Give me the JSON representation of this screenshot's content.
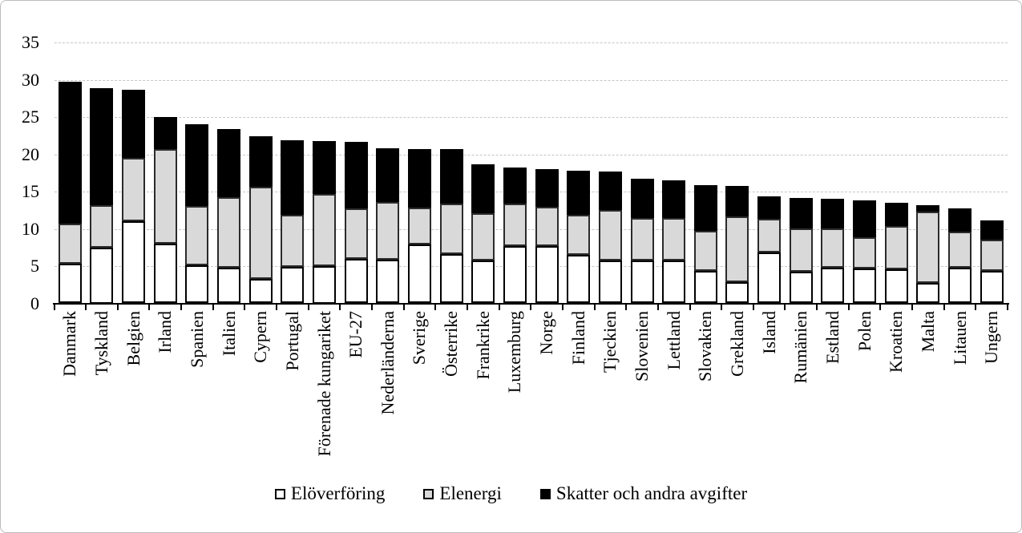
{
  "chart_data": {
    "type": "bar",
    "stacked": true,
    "orientation": "vertical",
    "title": "",
    "xlabel": "",
    "ylabel": "",
    "ylim": [
      0,
      35
    ],
    "yticks": [
      0,
      5,
      10,
      15,
      20,
      25,
      30,
      35
    ],
    "grid": true,
    "legend_position": "bottom",
    "categories": [
      "Danmark",
      "Tyskland",
      "Belgien",
      "Irland",
      "Spanien",
      "Italien",
      "Cypern",
      "Portugal",
      "Förenade kungariket",
      "EU-27",
      "Nederländerna",
      "Sverige",
      "Österrike",
      "Frankrike",
      "Luxemburg",
      "Norge",
      "Finland",
      "Tjeckien",
      "Slovenien",
      "Lettland",
      "Slovakien",
      "Grekland",
      "Island",
      "Rumänien",
      "Estland",
      "Polen",
      "Kroatien",
      "Malta",
      "Litauen",
      "Ungern"
    ],
    "series": [
      {
        "name": "Elöverföring",
        "color": "#ffffff",
        "values": [
          5.3,
          7.5,
          11.0,
          8.0,
          5.1,
          4.8,
          3.3,
          4.9,
          5.0,
          6.0,
          5.9,
          7.9,
          6.6,
          5.8,
          7.7,
          7.7,
          6.5,
          5.8,
          5.7,
          5.7,
          4.4,
          2.8,
          6.8,
          4.3,
          4.8,
          4.7,
          4.6,
          2.7,
          4.8,
          4.4
        ]
      },
      {
        "name": "Elenergi",
        "color": "#d9d9d9",
        "values": [
          5.4,
          5.7,
          8.5,
          12.7,
          8.0,
          9.4,
          12.3,
          7.0,
          9.7,
          6.7,
          7.7,
          5.0,
          6.8,
          6.3,
          5.7,
          5.3,
          5.4,
          6.7,
          5.7,
          5.7,
          5.3,
          8.9,
          4.5,
          5.8,
          5.3,
          4.2,
          5.8,
          9.6,
          4.8,
          4.1
        ]
      },
      {
        "name": "Skatter och andra avgifter",
        "color": "#000000",
        "values": [
          19.0,
          15.7,
          9.2,
          4.3,
          10.9,
          9.2,
          6.8,
          10.0,
          7.1,
          9.0,
          7.2,
          7.8,
          7.3,
          6.6,
          4.8,
          5.0,
          5.9,
          5.2,
          5.3,
          5.1,
          6.2,
          4.1,
          3.1,
          4.0,
          3.9,
          4.9,
          3.1,
          0.9,
          3.1,
          2.6
        ]
      }
    ],
    "totals": [
      29.7,
      28.9,
      28.7,
      25.0,
      24.0,
      23.4,
      22.4,
      21.9,
      21.8,
      21.7,
      20.8,
      20.7,
      20.7,
      18.7,
      18.2,
      18.0,
      17.8,
      17.7,
      16.7,
      16.5,
      15.9,
      15.8,
      14.4,
      14.1,
      14.0,
      13.8,
      13.5,
      13.2,
      12.7,
      11.1
    ]
  },
  "axis_colors": {
    "gridline": "#c6c6c6",
    "axis_line": "#000000",
    "text": "#000000"
  }
}
